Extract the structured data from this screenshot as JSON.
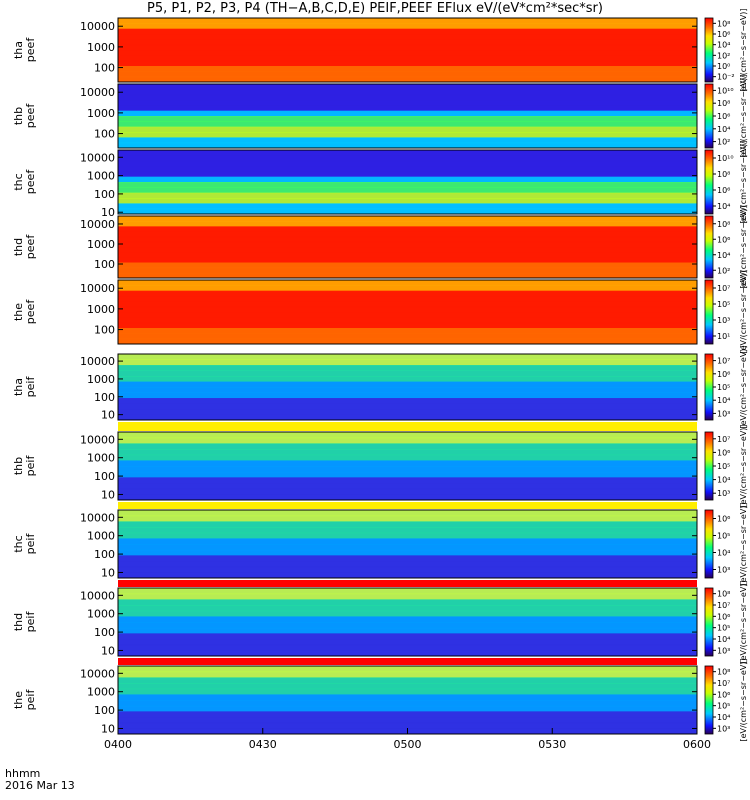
{
  "title": "P5, P1, P2, P3, P4 (TH−A,B,C,D,E) PEIF,PEEF EFlux eV/(eV*cm²*sec*sr)",
  "time_axis": {
    "label_line1": "hhmm",
    "label_line2": "2016 Mar 13",
    "ticks": [
      "0400",
      "0430",
      "0500",
      "0530",
      "0600"
    ]
  },
  "colorbar_unit": "[eV/(cm²−s−sr−eV)]",
  "chart_data": {
    "type": "heatmap",
    "title": "P5, P1, P2, P3, P4 (TH−A,B,C,D,E) PEIF,PEEF EFlux eV/(eV*cm²*sec*sr)",
    "x": {
      "label": "hhmm",
      "range": [
        "0400",
        "0600"
      ],
      "ticks": [
        "0400",
        "0430",
        "0500",
        "0530",
        "0600"
      ]
    },
    "panels": [
      {
        "name": "tha peef",
        "label_line1": "tha",
        "label_line2": "peef",
        "yscale": "log",
        "yticks": [
          "100",
          "1000",
          "10000"
        ],
        "ylim": [
          20,
          25000
        ],
        "colorbar_ticks": [
          "10⁻²",
          "10⁰",
          "10²",
          "10⁴",
          "10⁶",
          "10⁸"
        ],
        "clim_exp": [
          -3,
          9
        ],
        "bg": "#ff2a00"
      },
      {
        "name": "thb peef",
        "label_line1": "thb",
        "label_line2": "peef",
        "yscale": "log",
        "yticks": [
          "100",
          "1000",
          "10000"
        ],
        "ylim": [
          20,
          25000
        ],
        "colorbar_ticks": [
          "10²",
          "10⁴",
          "10⁶",
          "10⁸",
          "10¹⁰"
        ],
        "clim_exp": [
          1,
          11
        ],
        "bg": "#2020ff"
      },
      {
        "name": "thc peef",
        "label_line1": "thc",
        "label_line2": "peef",
        "yscale": "log",
        "yticks": [
          "10",
          "100",
          "1000",
          "10000"
        ],
        "ylim": [
          8,
          25000
        ],
        "colorbar_ticks": [
          "10⁴",
          "10⁶",
          "10⁸",
          "10¹⁰"
        ],
        "clim_exp": [
          3,
          11
        ],
        "bg": "#2020ff"
      },
      {
        "name": "thd peef",
        "label_line1": "thd",
        "label_line2": "peef",
        "yscale": "log",
        "yticks": [
          "100",
          "1000",
          "10000"
        ],
        "ylim": [
          20,
          25000
        ],
        "colorbar_ticks": [
          "10²",
          "10⁴",
          "10⁶",
          "10⁸"
        ],
        "clim_exp": [
          1,
          9
        ],
        "bg": "#ff2a00"
      },
      {
        "name": "the peef",
        "label_line1": "the",
        "label_line2": "peef",
        "yscale": "log",
        "yticks": [
          "100",
          "1000",
          "10000"
        ],
        "ylim": [
          20,
          25000
        ],
        "colorbar_ticks": [
          "10¹",
          "10³",
          "10⁵",
          "10⁷"
        ],
        "clim_exp": [
          0,
          8
        ],
        "bg": "#ff2a00"
      },
      {
        "name": "tha peif",
        "label_line1": "tha",
        "label_line2": "peif",
        "yscale": "log",
        "yticks": [
          "10",
          "100",
          "1000",
          "10000"
        ],
        "ylim": [
          5,
          25000
        ],
        "colorbar_ticks": [
          "10³",
          "10⁴",
          "10⁵",
          "10⁶",
          "10⁷"
        ],
        "clim_exp": [
          2.5,
          7.5
        ],
        "bg": "#3040ff"
      },
      {
        "name": "thb peif",
        "label_line1": "thb",
        "label_line2": "peif",
        "yscale": "log",
        "yticks": [
          "10",
          "100",
          "1000",
          "10000"
        ],
        "ylim": [
          5,
          25000
        ],
        "colorbar_ticks": [
          "10³",
          "10⁴",
          "10⁵",
          "10⁶",
          "10⁷"
        ],
        "clim_exp": [
          2.5,
          7.5
        ],
        "bg": "#3040ff"
      },
      {
        "name": "thc peif",
        "label_line1": "thc",
        "label_line2": "peif",
        "yscale": "log",
        "yticks": [
          "10",
          "100",
          "1000",
          "10000"
        ],
        "ylim": [
          5,
          25000
        ],
        "colorbar_ticks": [
          "10³",
          "10⁴",
          "10⁵",
          "10⁶"
        ],
        "clim_exp": [
          2.5,
          6.5
        ],
        "bg": "#3040ff"
      },
      {
        "name": "thd peif",
        "label_line1": "thd",
        "label_line2": "peif",
        "yscale": "log",
        "yticks": [
          "10",
          "100",
          "1000",
          "10000"
        ],
        "ylim": [
          5,
          25000
        ],
        "colorbar_ticks": [
          "10³",
          "10⁴",
          "10⁵",
          "10⁶",
          "10⁷",
          "10⁸"
        ],
        "clim_exp": [
          2.5,
          8.5
        ],
        "bg": "#3040ff"
      },
      {
        "name": "the peif",
        "label_line1": "the",
        "label_line2": "peif",
        "yscale": "log",
        "yticks": [
          "10",
          "100",
          "1000",
          "10000"
        ],
        "ylim": [
          5,
          25000
        ],
        "colorbar_ticks": [
          "10³",
          "10⁴",
          "10⁵",
          "10⁶",
          "10⁷",
          "10⁸"
        ],
        "clim_exp": [
          2.5,
          8.5
        ],
        "bg": "#3040ff"
      }
    ]
  }
}
